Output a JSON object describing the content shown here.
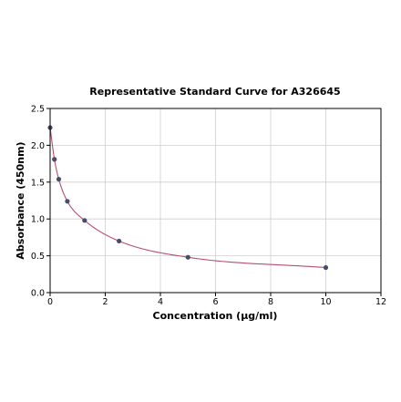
{
  "chart_data": {
    "type": "scatter",
    "title": "Representative Standard Curve for A326645",
    "xlabel": "Concentration (µg/ml)",
    "ylabel": "Absorbance (450nm)",
    "xlim": [
      0,
      12
    ],
    "ylim": [
      0,
      2.5
    ],
    "xticks": [
      "0",
      "2",
      "4",
      "6",
      "8",
      "10",
      "12"
    ],
    "yticks": [
      "0.0",
      "0.5",
      "1.0",
      "1.5",
      "2.0",
      "2.5"
    ],
    "grid": true,
    "legend": "none",
    "colors": {
      "curve": "#b5506e",
      "points": "#4a4a6a"
    },
    "series": [
      {
        "x": [
          0,
          0.156,
          0.313,
          0.625,
          1.25,
          2.5,
          5,
          10
        ],
        "y": [
          2.24,
          1.81,
          1.54,
          1.24,
          0.98,
          0.7,
          0.48,
          0.34
        ]
      }
    ]
  }
}
